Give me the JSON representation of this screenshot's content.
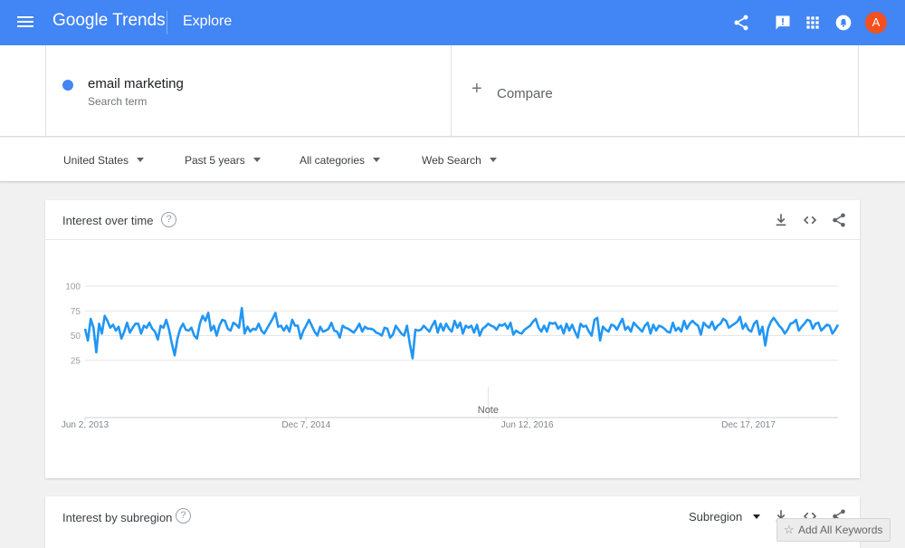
{
  "header": {
    "logo_google": "Google",
    "logo_trends": "Trends",
    "section": "Explore",
    "avatar_letter": "A",
    "brand_color": "#4285f4",
    "icons": [
      "menu-icon",
      "share-icon",
      "feedback-icon",
      "apps-icon",
      "notifications-icon"
    ]
  },
  "search": {
    "term": "email marketing",
    "term_sub": "Search term",
    "term_color": "#4285f4",
    "compare_label": "Compare"
  },
  "filters": {
    "region": "United States",
    "time": "Past 5 years",
    "category": "All categories",
    "property": "Web Search"
  },
  "interest_over_time": {
    "title": "Interest over time",
    "note": "Note"
  },
  "interest_by_subregion": {
    "title": "Interest by subregion",
    "dropdown": "Subregion"
  },
  "extension": {
    "add_keywords": "Add All Keywords"
  },
  "chart_data": {
    "type": "line",
    "title": "",
    "xlabel": "",
    "ylabel": "",
    "ylim": [
      0,
      100
    ],
    "yticks": [
      25,
      50,
      75,
      100
    ],
    "x_tick_labels": [
      "Jun 2, 2013",
      "Dec 7, 2014",
      "Jun 12, 2016",
      "Dec 17, 2017"
    ],
    "x_tick_indices": [
      0,
      79,
      158,
      237
    ],
    "note_index": 144,
    "grid": true,
    "color": "#2196f3",
    "series": [
      {
        "values": [
          57,
          45,
          67,
          58,
          33,
          62,
          52,
          70,
          65,
          58,
          61,
          55,
          59,
          47,
          54,
          63,
          53,
          58,
          62,
          62,
          52,
          60,
          58,
          63,
          57,
          54,
          46,
          60,
          58,
          66,
          56,
          42,
          30,
          47,
          57,
          62,
          56,
          55,
          58,
          50,
          47,
          62,
          70,
          65,
          73,
          55,
          60,
          50,
          60,
          66,
          65,
          57,
          55,
          63,
          61,
          58,
          78,
          52,
          59,
          54,
          57,
          56,
          62,
          55,
          52,
          57,
          62,
          67,
          73,
          59,
          60,
          55,
          60,
          54,
          66,
          60,
          60,
          47,
          55,
          60,
          66,
          60,
          54,
          50,
          59,
          54,
          55,
          57,
          63,
          55,
          54,
          48,
          60,
          58,
          57,
          55,
          53,
          57,
          62,
          54,
          59,
          57,
          57,
          56,
          53,
          52,
          50,
          58,
          57,
          48,
          51,
          60,
          56,
          52,
          50,
          60,
          42,
          27,
          56,
          55,
          56,
          60,
          57,
          54,
          60,
          65,
          53,
          62,
          55,
          62,
          57,
          54,
          65,
          58,
          63,
          52,
          60,
          58,
          60,
          53,
          61,
          50,
          57,
          59,
          62,
          60,
          59,
          56,
          61,
          60,
          62,
          57,
          63,
          51,
          55,
          53,
          52,
          56,
          58,
          60,
          64,
          67,
          58,
          54,
          60,
          54,
          63,
          62,
          63,
          57,
          60,
          52,
          62,
          55,
          61,
          54,
          48,
          62,
          59,
          60,
          54,
          50,
          66,
          68,
          45,
          59,
          56,
          54,
          61,
          60,
          56,
          62,
          67,
          56,
          59,
          54,
          63,
          60,
          57,
          54,
          60,
          63,
          52,
          61,
          55,
          60,
          59,
          57,
          54,
          53,
          63,
          55,
          58,
          54,
          65,
          57,
          62,
          65,
          62,
          60,
          51,
          63,
          60,
          58,
          64,
          56,
          60,
          62,
          67,
          65,
          58,
          60,
          62,
          64,
          69,
          57,
          62,
          56,
          54,
          62,
          65,
          51,
          59,
          40,
          57,
          64,
          68,
          64,
          60,
          57,
          52,
          56,
          62,
          63,
          66,
          55,
          59,
          62,
          66,
          65,
          57,
          62,
          63,
          55,
          58,
          61,
          60,
          52,
          56,
          61
        ]
      }
    ]
  }
}
